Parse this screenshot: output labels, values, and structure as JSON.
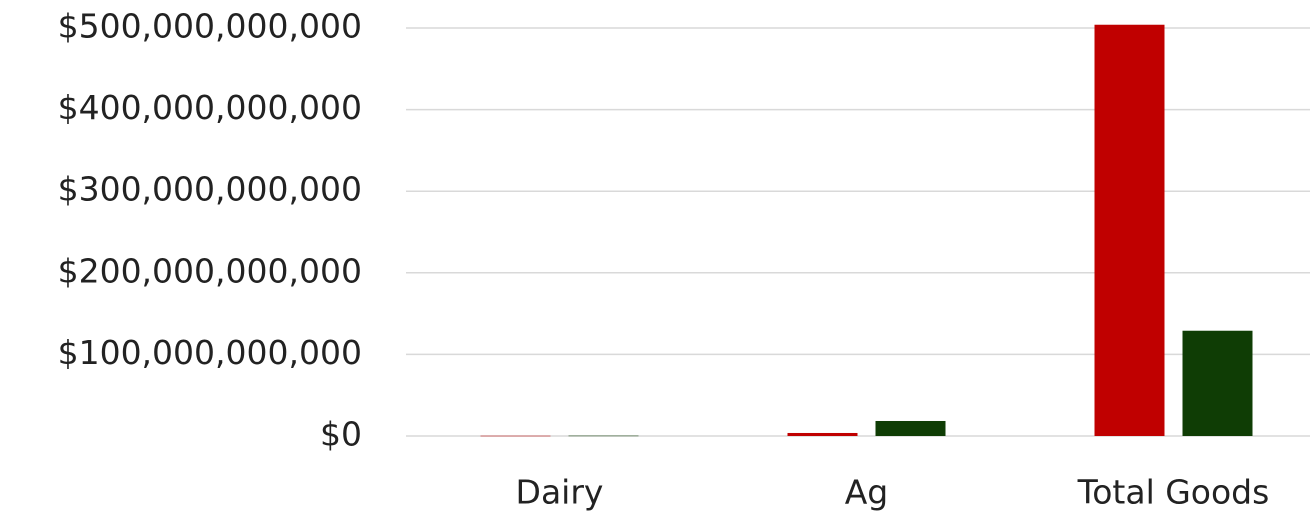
{
  "chart_data": {
    "type": "bar",
    "categories": [
      "Dairy",
      "Ag",
      "Total Goods"
    ],
    "series": [
      {
        "color": "#c00000",
        "values": [
          300000000,
          3700000000,
          504000000000
        ]
      },
      {
        "color": "#0f3d05",
        "values": [
          400000000,
          18400000000,
          129000000000
        ]
      }
    ],
    "ylim": [
      0,
      500000000000
    ],
    "yticks": [
      {
        "value": 0,
        "label": "$0"
      },
      {
        "value": 100000000000,
        "label": "$100,000,000,000"
      },
      {
        "value": 200000000000,
        "label": "$200,000,000,000"
      },
      {
        "value": 300000000000,
        "label": "$300,000,000,000"
      },
      {
        "value": 400000000000,
        "label": "$400,000,000,000"
      },
      {
        "value": 500000000000,
        "label": "$500,000,000,000"
      }
    ],
    "grid": true
  }
}
